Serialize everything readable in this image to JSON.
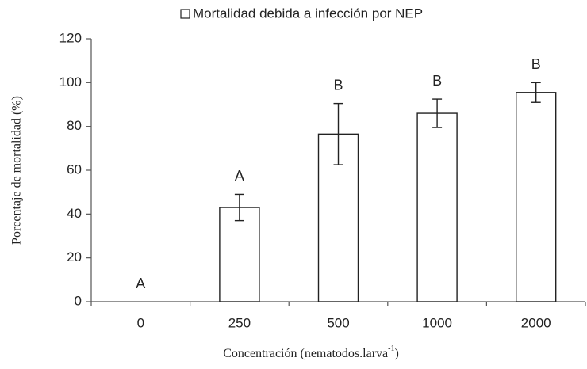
{
  "chart_data": {
    "type": "bar",
    "legend_label": "Mortalidad debida a infección por NEP",
    "x_label": [
      "Concentración (nematodos.larva",
      "-1",
      ")"
    ],
    "y_label": "Porcentaje de mortalidad (%)",
    "categories": [
      "0",
      "250",
      "500",
      "1000",
      "2000"
    ],
    "values": [
      0,
      43,
      76.5,
      86,
      95.5
    ],
    "errors": [
      0,
      6,
      14,
      6.5,
      4.5
    ],
    "annotations": [
      "A",
      "A",
      "B",
      "B",
      "B"
    ],
    "color": "#ffffff",
    "ylim": [
      0,
      120
    ],
    "yticks": [
      0,
      20,
      40,
      60,
      80,
      100,
      120
    ],
    "grid": false
  }
}
